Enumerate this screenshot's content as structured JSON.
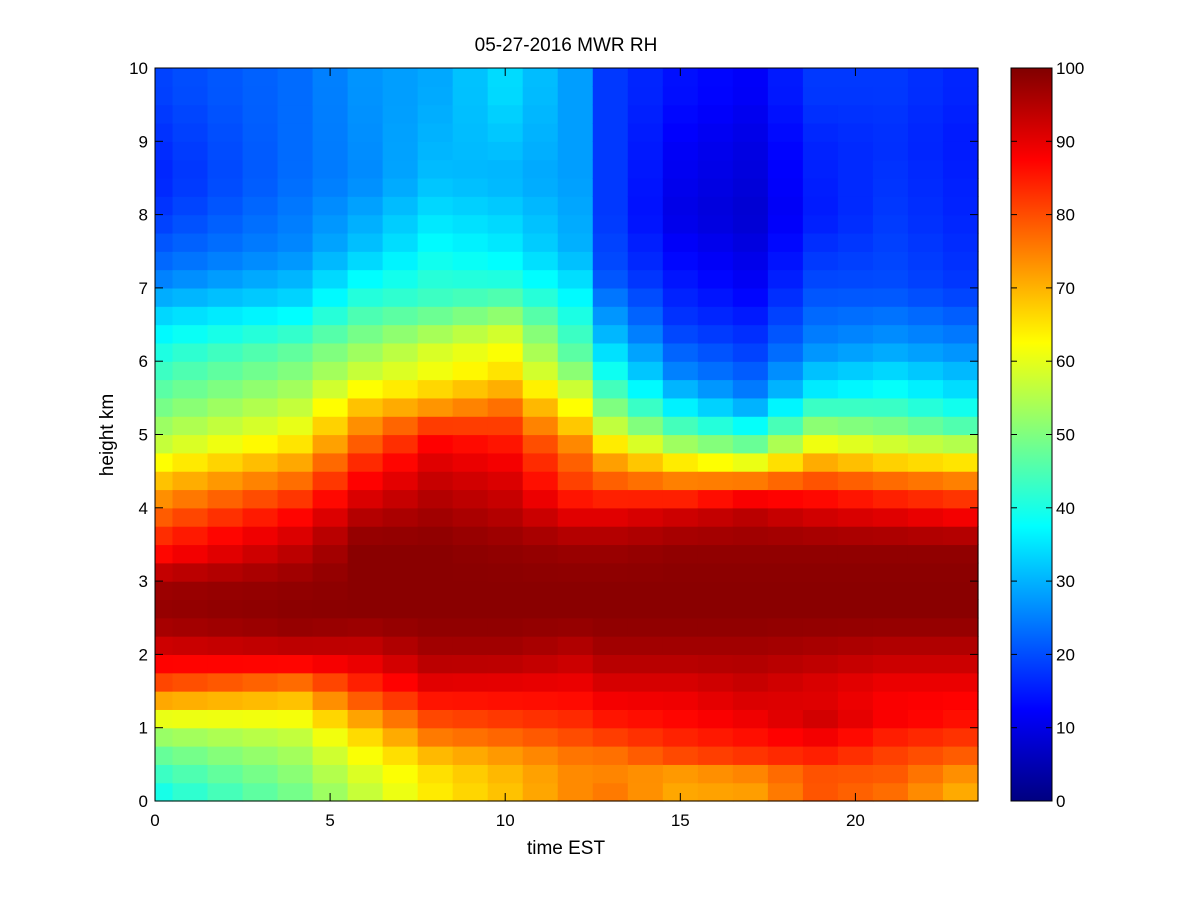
{
  "chart_data": {
    "type": "heatmap",
    "title": "05-27-2016 MWR RH",
    "xlabel": "time EST",
    "ylabel": "height km",
    "xlim": [
      0,
      23.5
    ],
    "ylim": [
      0,
      10
    ],
    "xticks": [
      0,
      5,
      10,
      15,
      20
    ],
    "yticks": [
      0,
      1,
      2,
      3,
      4,
      5,
      6,
      7,
      8,
      9,
      10
    ],
    "colorbar": {
      "min": 0,
      "max": 100,
      "ticks": [
        0,
        10,
        20,
        30,
        40,
        50,
        60,
        70,
        80,
        90,
        100
      ],
      "colormap": "jet"
    },
    "grid": false,
    "time_hours": [
      0,
      1,
      2,
      3,
      4,
      5,
      6,
      7,
      8,
      9,
      10,
      11,
      12,
      13,
      14,
      15,
      16,
      17,
      18,
      19,
      20,
      21,
      22,
      23
    ],
    "height_km": [
      0,
      0.25,
      0.5,
      0.75,
      1,
      1.25,
      1.5,
      1.75,
      2,
      2.25,
      2.5,
      2.75,
      3,
      3.25,
      3.5,
      3.75,
      4,
      4.25,
      4.5,
      4.75,
      5,
      5.25,
      5.5,
      5.75,
      6,
      6.25,
      6.5,
      6.75,
      7,
      7.25,
      7.5,
      7.75,
      8,
      8.25,
      8.5,
      8.75,
      9,
      9.25,
      9.5,
      9.75
    ],
    "rh_profiles": [
      {
        "t": 0,
        "rh": [
          [
            0,
            38
          ],
          [
            0.5,
            45
          ],
          [
            1,
            55
          ],
          [
            1.3,
            68
          ],
          [
            1.6,
            80
          ],
          [
            1.9,
            88
          ],
          [
            2.1,
            92
          ],
          [
            2.5,
            98
          ],
          [
            3.0,
            97
          ],
          [
            3.3,
            88
          ],
          [
            3.7,
            82
          ],
          [
            4.0,
            76
          ],
          [
            4.4,
            68
          ],
          [
            4.8,
            58
          ],
          [
            5.3,
            50
          ],
          [
            6,
            42
          ],
          [
            6.6,
            34
          ],
          [
            7.2,
            24
          ],
          [
            8,
            18
          ],
          [
            8.5,
            16
          ],
          [
            9,
            17
          ],
          [
            9.7,
            19
          ]
        ]
      },
      {
        "t": 4,
        "rh": [
          [
            0,
            48
          ],
          [
            0.5,
            52
          ],
          [
            1,
            58
          ],
          [
            1.5,
            72
          ],
          [
            1.9,
            88
          ],
          [
            2.2,
            96
          ],
          [
            2.5,
            99
          ],
          [
            3.0,
            98
          ],
          [
            3.3,
            95
          ],
          [
            3.7,
            90
          ],
          [
            4.0,
            85
          ],
          [
            4.5,
            74
          ],
          [
            5,
            62
          ],
          [
            5.5,
            55
          ],
          [
            6.2,
            46
          ],
          [
            6.8,
            34
          ],
          [
            7.5,
            26
          ],
          [
            8.5,
            23
          ],
          [
            9.7,
            23
          ]
        ]
      },
      {
        "t": 6,
        "rh": [
          [
            0,
            56
          ],
          [
            0.5,
            60
          ],
          [
            1,
            68
          ],
          [
            1.5,
            82
          ],
          [
            2,
            92
          ],
          [
            2.5,
            99
          ],
          [
            3.0,
            99
          ],
          [
            3.5,
            99
          ],
          [
            3.8,
            96
          ],
          [
            4.2,
            90
          ],
          [
            4.6,
            84
          ],
          [
            5,
            76
          ],
          [
            5.4,
            68
          ],
          [
            5.8,
            58
          ],
          [
            6.2,
            52
          ],
          [
            6.8,
            42
          ],
          [
            7.5,
            32
          ],
          [
            8.5,
            26
          ],
          [
            9.7,
            27
          ]
        ]
      },
      {
        "t": 8,
        "rh": [
          [
            0,
            64
          ],
          [
            0.5,
            66
          ],
          [
            0.8,
            74
          ],
          [
            1.2,
            82
          ],
          [
            1.6,
            90
          ],
          [
            2,
            96
          ],
          [
            2.5,
            99
          ],
          [
            3.0,
            99
          ],
          [
            3.5,
            99
          ],
          [
            4.0,
            96
          ],
          [
            4.5,
            92
          ],
          [
            5,
            86
          ],
          [
            5.4,
            72
          ],
          [
            5.8,
            62
          ],
          [
            6.2,
            58
          ],
          [
            6.8,
            44
          ],
          [
            7.5,
            38
          ],
          [
            8.5,
            31
          ],
          [
            9.7,
            29
          ]
        ]
      },
      {
        "t": 10,
        "rh": [
          [
            0,
            68
          ],
          [
            0.5,
            70
          ],
          [
            1,
            80
          ],
          [
            1.5,
            88
          ],
          [
            2,
            96
          ],
          [
            2.5,
            99
          ],
          [
            3.0,
            99
          ],
          [
            3.5,
            98
          ],
          [
            4.0,
            94
          ],
          [
            4.5,
            90
          ],
          [
            5,
            84
          ],
          [
            5.4,
            76
          ],
          [
            5.8,
            66
          ],
          [
            6.3,
            60
          ],
          [
            7,
            42
          ],
          [
            7.5,
            36
          ],
          [
            8.5,
            30
          ],
          [
            9.7,
            34
          ]
        ]
      },
      {
        "t": 12,
        "rh": [
          [
            0,
            74
          ],
          [
            0.5,
            74
          ],
          [
            1,
            82
          ],
          [
            1.5,
            88
          ],
          [
            2,
            94
          ],
          [
            2.5,
            99
          ],
          [
            3.0,
            99
          ],
          [
            3.5,
            97
          ],
          [
            3.9,
            90
          ],
          [
            4.3,
            82
          ],
          [
            4.8,
            76
          ],
          [
            5.2,
            66
          ],
          [
            5.6,
            58
          ],
          [
            6,
            48
          ],
          [
            6.8,
            38
          ],
          [
            7.5,
            30
          ],
          [
            8.5,
            28
          ],
          [
            9.7,
            28
          ]
        ]
      },
      {
        "t": 13,
        "rh": [
          [
            0,
            76
          ],
          [
            0.5,
            74
          ],
          [
            1,
            84
          ],
          [
            1.5,
            90
          ],
          [
            2,
            96
          ],
          [
            2.5,
            99
          ],
          [
            3.0,
            99
          ],
          [
            3.5,
            97
          ],
          [
            3.9,
            90
          ],
          [
            4.3,
            80
          ],
          [
            4.7,
            70
          ],
          [
            5.2,
            54
          ],
          [
            5.8,
            40
          ],
          [
            6.4,
            30
          ],
          [
            7.2,
            20
          ],
          [
            8,
            18
          ],
          [
            9.7,
            18
          ]
        ]
      },
      {
        "t": 15,
        "rh": [
          [
            0,
            72
          ],
          [
            0.3,
            70
          ],
          [
            0.6,
            80
          ],
          [
            1,
            86
          ],
          [
            1.5,
            90
          ],
          [
            2,
            96
          ],
          [
            2.5,
            99
          ],
          [
            3.0,
            99
          ],
          [
            3.5,
            98
          ],
          [
            3.9,
            92
          ],
          [
            4.2,
            82
          ],
          [
            4.5,
            70
          ],
          [
            4.9,
            52
          ],
          [
            5.3,
            38
          ],
          [
            5.8,
            26
          ],
          [
            6.5,
            18
          ],
          [
            7.2,
            14
          ],
          [
            8,
            10
          ],
          [
            9,
            12
          ],
          [
            9.7,
            14
          ]
        ]
      },
      {
        "t": 17,
        "rh": [
          [
            0,
            72
          ],
          [
            0.3,
            72
          ],
          [
            0.6,
            82
          ],
          [
            1,
            88
          ],
          [
            1.5,
            92
          ],
          [
            2,
            96
          ],
          [
            2.5,
            99
          ],
          [
            3.0,
            99
          ],
          [
            3.5,
            98
          ],
          [
            3.9,
            94
          ],
          [
            4.2,
            86
          ],
          [
            4.4,
            74
          ],
          [
            4.7,
            56
          ],
          [
            5,
            42
          ],
          [
            5.5,
            26
          ],
          [
            6,
            20
          ],
          [
            6.5,
            16
          ],
          [
            7,
            12
          ],
          [
            7.5,
            10
          ],
          [
            8,
            8
          ],
          [
            9,
            10
          ],
          [
            9.7,
            12
          ]
        ]
      },
      {
        "t": 19,
        "rh": [
          [
            0,
            80
          ],
          [
            0.3,
            78
          ],
          [
            0.7,
            86
          ],
          [
            1.1,
            92
          ],
          [
            1.5,
            90
          ],
          [
            2,
            95
          ],
          [
            2.5,
            99
          ],
          [
            3.0,
            99
          ],
          [
            3.5,
            98
          ],
          [
            4.0,
            90
          ],
          [
            4.3,
            82
          ],
          [
            4.7,
            68
          ],
          [
            5.1,
            52
          ],
          [
            5.6,
            36
          ],
          [
            6.2,
            26
          ],
          [
            7,
            20
          ],
          [
            8,
            15
          ],
          [
            9,
            16
          ],
          [
            9.7,
            18
          ]
        ]
      },
      {
        "t": 21,
        "rh": [
          [
            0,
            76
          ],
          [
            0.3,
            78
          ],
          [
            0.7,
            82
          ],
          [
            1.1,
            88
          ],
          [
            1.5,
            88
          ],
          [
            2,
            94
          ],
          [
            2.5,
            99
          ],
          [
            3.0,
            99
          ],
          [
            3.5,
            98
          ],
          [
            3.9,
            90
          ],
          [
            4.3,
            80
          ],
          [
            4.7,
            64
          ],
          [
            5.1,
            50
          ],
          [
            5.5,
            40
          ],
          [
            6.2,
            28
          ],
          [
            7,
            20
          ],
          [
            8,
            18
          ],
          [
            9,
            17
          ],
          [
            9.7,
            18
          ]
        ]
      },
      {
        "t": 23,
        "rh": [
          [
            0,
            70
          ],
          [
            0.3,
            72
          ],
          [
            0.7,
            80
          ],
          [
            1.1,
            86
          ],
          [
            1.5,
            88
          ],
          [
            2,
            94
          ],
          [
            2.5,
            99
          ],
          [
            3.0,
            99
          ],
          [
            3.5,
            98
          ],
          [
            3.9,
            88
          ],
          [
            4.3,
            78
          ],
          [
            4.7,
            62
          ],
          [
            5.1,
            46
          ],
          [
            5.5,
            36
          ],
          [
            6.2,
            26
          ],
          [
            7,
            18
          ],
          [
            8,
            16
          ],
          [
            9,
            15
          ],
          [
            9.7,
            16
          ]
        ]
      }
    ]
  }
}
